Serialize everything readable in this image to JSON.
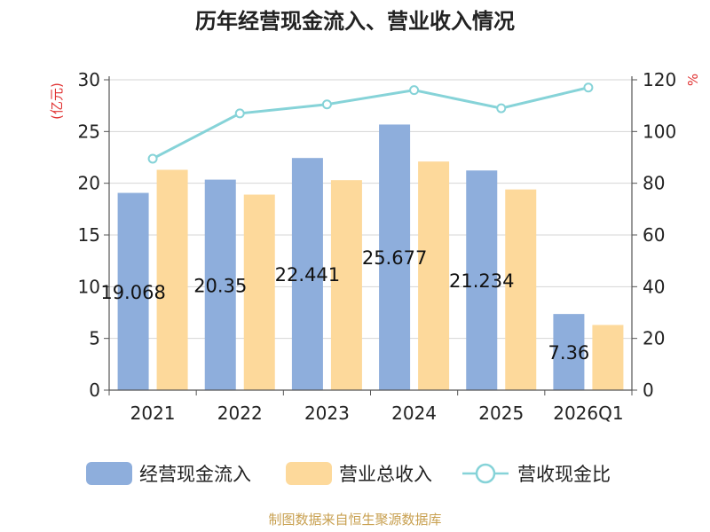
{
  "chart_data": {
    "type": "bar",
    "title": "历年经营现金流入、营业收入情况",
    "categories": [
      "2021",
      "2022",
      "2023",
      "2024",
      "2025",
      "2026Q1"
    ],
    "series": [
      {
        "name": "经营现金流入",
        "type": "bar",
        "axis": "left",
        "color": "#8eaedc",
        "values": [
          19.068,
          20.35,
          22.441,
          25.677,
          21.234,
          7.36
        ],
        "labels": [
          "19.068",
          "20.35",
          "22.441",
          "25.677",
          "21.234",
          "7.36"
        ]
      },
      {
        "name": "营业总收入",
        "type": "bar",
        "axis": "left",
        "color": "#fdd99b",
        "values": [
          21.3,
          18.9,
          20.3,
          22.1,
          19.4,
          6.3
        ]
      },
      {
        "name": "营收现金比",
        "type": "line",
        "axis": "right",
        "color": "#86d3d8",
        "values": [
          89.5,
          107,
          110.5,
          116,
          109,
          117
        ]
      }
    ],
    "y_left": {
      "label": "(亿元)",
      "ylim": [
        0,
        30
      ],
      "ticks": [
        "0",
        "5",
        "10",
        "15",
        "20",
        "25",
        "30"
      ],
      "color": "#e03131"
    },
    "y_right": {
      "label": "%",
      "ylim": [
        0,
        120
      ],
      "ticks": [
        "0",
        "20",
        "40",
        "60",
        "80",
        "100",
        "120"
      ],
      "color": "#e03131"
    },
    "grid": true,
    "legend_position": "bottom"
  },
  "source_text": "制图数据来自恒生聚源数据库",
  "source_color": "#c8a050"
}
